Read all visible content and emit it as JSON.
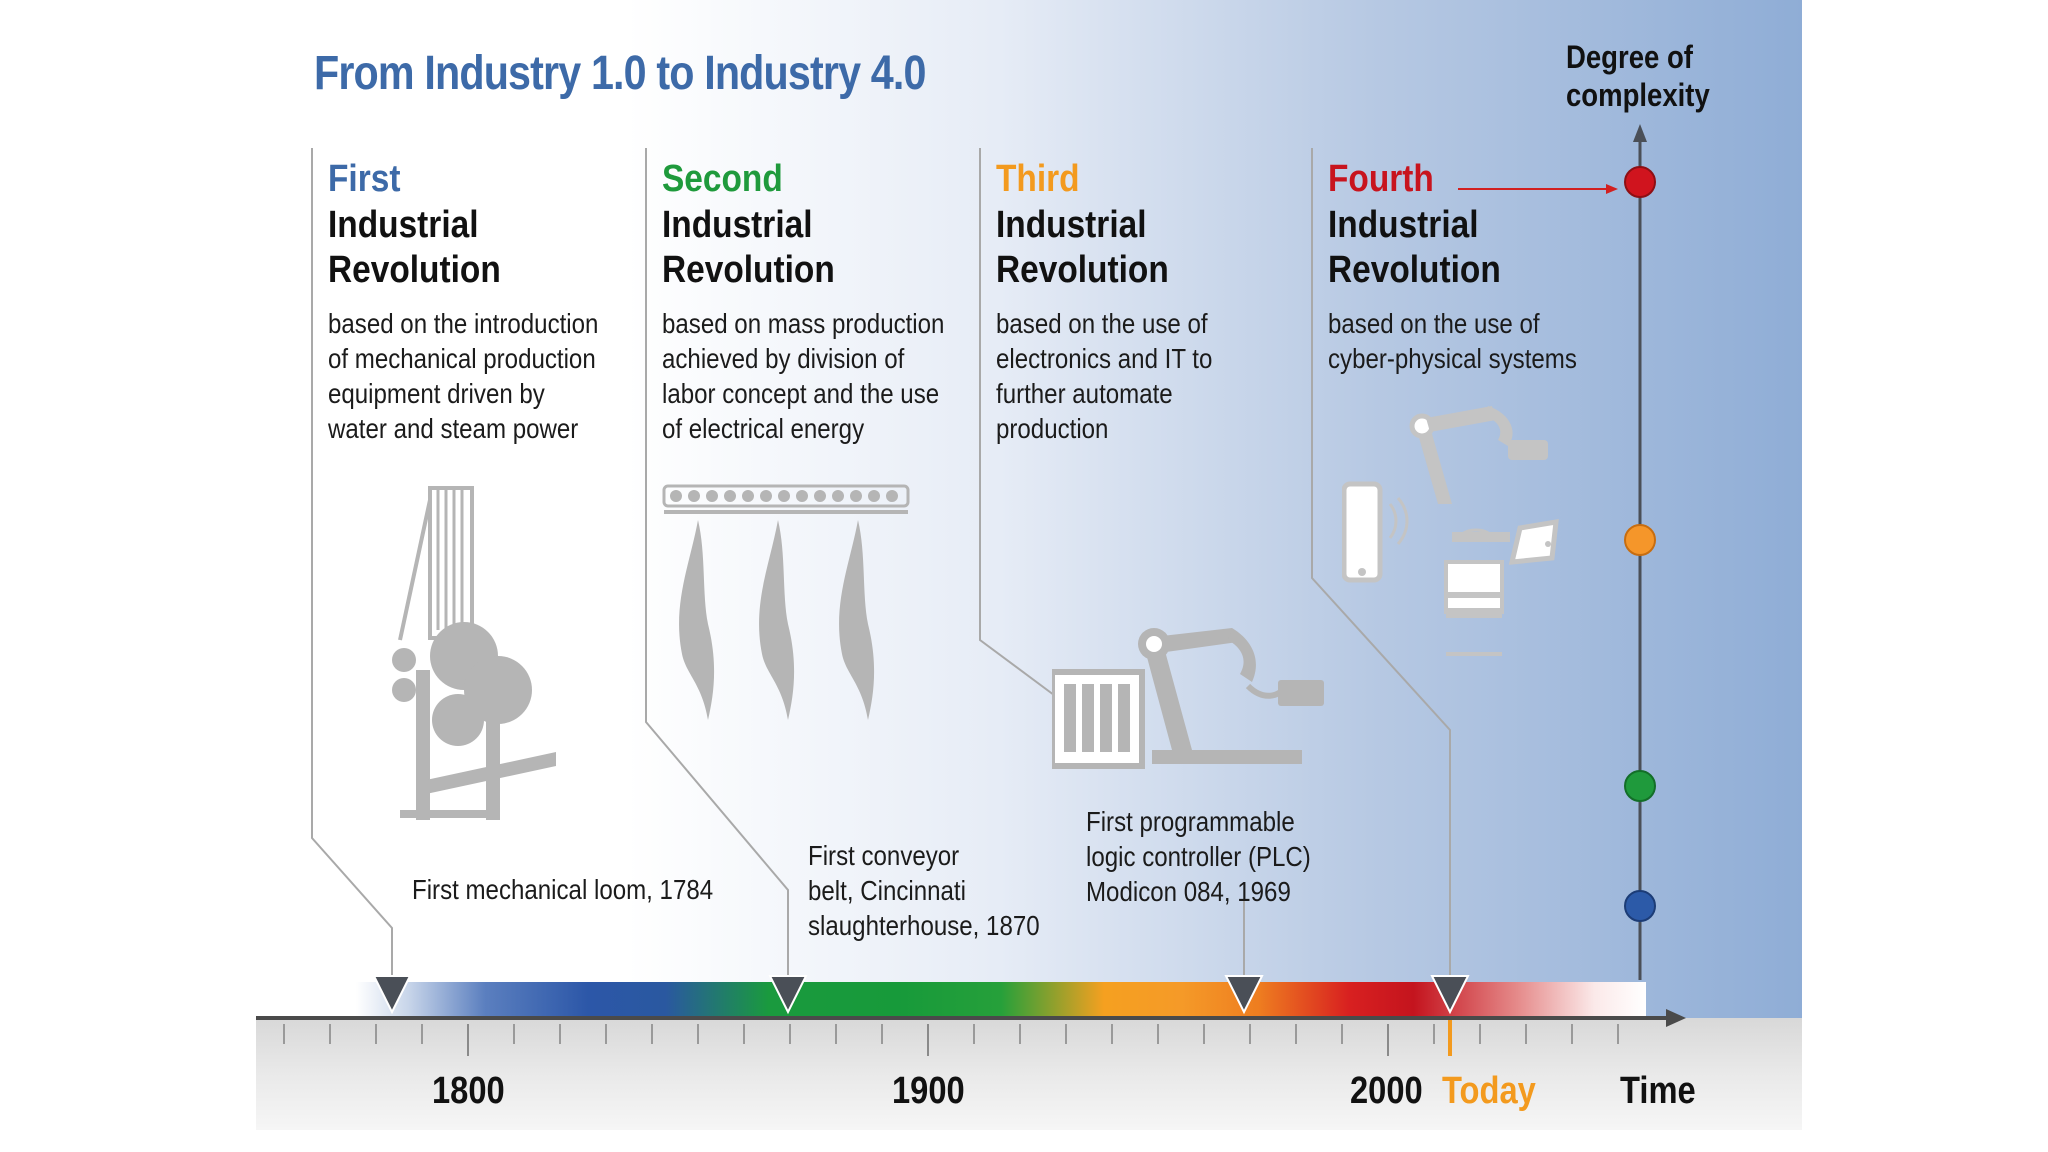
{
  "title": "From Industry 1.0 to Industry 4.0",
  "degree_of_complexity": [
    "Degree of",
    "complexity"
  ],
  "colors": {
    "title": "#3d6aa8",
    "first": "#3d6aa8",
    "second": "#1f9a3c",
    "third": "#f39a1e",
    "fourth": "#c8141e"
  },
  "revolutions": [
    {
      "ordinal": "First",
      "line2": "Industrial",
      "line3": "Revolution",
      "description": [
        "based on the introduction",
        "of  mechanical production",
        "equipment driven by",
        "water and steam power"
      ],
      "icon": "loom-icon"
    },
    {
      "ordinal": "Second",
      "line2": "Industrial",
      "line3": "Revolution",
      "description": [
        "based on mass production",
        "achieved by division of",
        "labor concept and the use",
        "of electrical energy"
      ],
      "icon": "conveyor-icon"
    },
    {
      "ordinal": "Third",
      "line2": "Industrial",
      "line3": "Revolution",
      "description": [
        "based on the use of",
        "electronics and IT to",
        "further automate",
        "production"
      ],
      "icon": "plc-robot-icon"
    },
    {
      "ordinal": "Fourth",
      "line2": "Industrial",
      "line3": "Revolution",
      "description": [
        "based on the use of",
        "cyber-physical systems"
      ],
      "icon": "cyber-physical-icon"
    }
  ],
  "milestones": [
    [
      "First mechanical loom, 1784"
    ],
    [
      "First conveyor",
      "belt, Cincinnati",
      "slaughterhouse, 1870"
    ],
    [
      "First programmable",
      "logic controller (PLC)",
      "Modicon 084, 1969"
    ]
  ],
  "axis": {
    "labels": [
      "1800",
      "1900",
      "2000"
    ],
    "today": "Today",
    "time": "Time"
  }
}
